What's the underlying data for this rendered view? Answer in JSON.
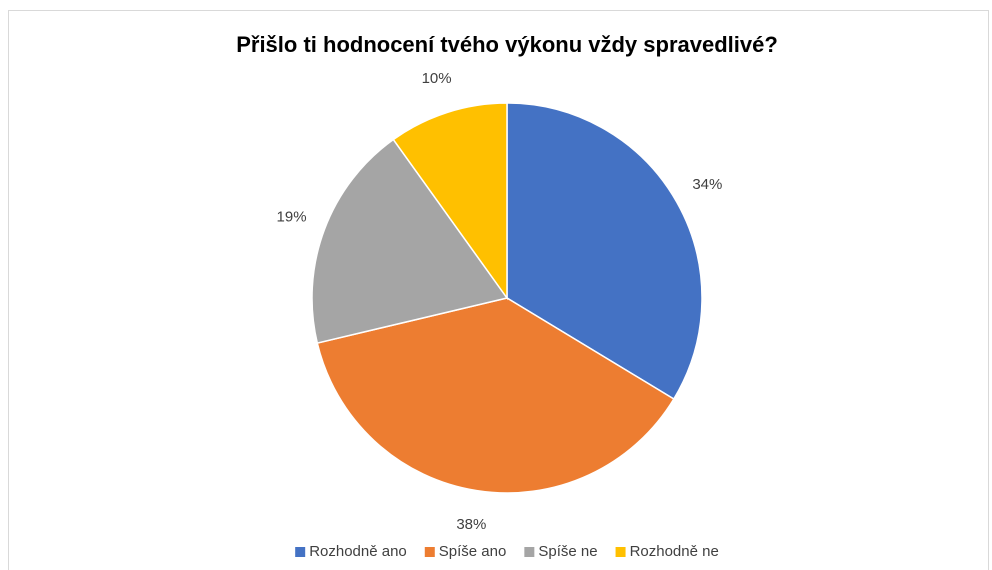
{
  "chart_data": {
    "type": "pie",
    "title": "Přišlo ti hodnocení tvého výkonu vždy spravedlivé?",
    "categories": [
      "Rozhodně ano",
      "Spíše ano",
      "Spíše ne",
      "Rozhodně ne"
    ],
    "values": [
      34,
      38,
      19,
      10
    ],
    "value_labels": [
      "34%",
      "38%",
      "19%",
      "10%"
    ],
    "colors": [
      "#4472c4",
      "#ed7d31",
      "#a5a5a5",
      "#ffc000"
    ],
    "legend": "bottom"
  }
}
